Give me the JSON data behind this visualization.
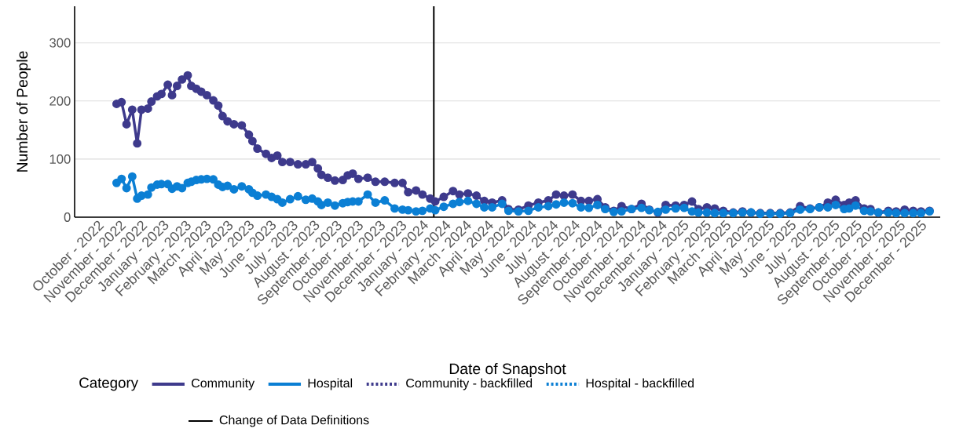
{
  "chart_data": {
    "type": "line",
    "xlabel": "Date of Snapshot",
    "ylabel": "Number of People",
    "legend_title": "Category",
    "xlim": [
      "2022-08-30",
      "2025-12-29"
    ],
    "ylim": [
      0,
      363
    ],
    "yticks": [
      0,
      100,
      200,
      300
    ],
    "xticks": [
      {
        "value": "2022-10-01",
        "label": "October - 2022"
      },
      {
        "value": "2022-11-01",
        "label": "November - 2022"
      },
      {
        "value": "2022-12-01",
        "label": "December - 2022"
      },
      {
        "value": "2023-01-01",
        "label": "January - 2023"
      },
      {
        "value": "2023-02-01",
        "label": "February - 2023"
      },
      {
        "value": "2023-03-01",
        "label": "March - 2023"
      },
      {
        "value": "2023-04-01",
        "label": "April - 2023"
      },
      {
        "value": "2023-05-01",
        "label": "May - 2023"
      },
      {
        "value": "2023-06-01",
        "label": "June - 2023"
      },
      {
        "value": "2023-07-01",
        "label": "July - 2023"
      },
      {
        "value": "2023-08-01",
        "label": "August - 2023"
      },
      {
        "value": "2023-09-01",
        "label": "September - 2023"
      },
      {
        "value": "2023-10-01",
        "label": "October - 2023"
      },
      {
        "value": "2023-11-01",
        "label": "November - 2023"
      },
      {
        "value": "2023-12-01",
        "label": "December - 2023"
      },
      {
        "value": "2024-01-01",
        "label": "January - 2024"
      },
      {
        "value": "2024-02-01",
        "label": "February - 2024"
      },
      {
        "value": "2024-03-01",
        "label": "March - 2024"
      },
      {
        "value": "2024-04-01",
        "label": "April - 2024"
      },
      {
        "value": "2024-05-01",
        "label": "May - 2024"
      },
      {
        "value": "2024-06-01",
        "label": "June - 2024"
      },
      {
        "value": "2024-07-01",
        "label": "July - 2024"
      },
      {
        "value": "2024-08-01",
        "label": "August - 2024"
      },
      {
        "value": "2024-09-01",
        "label": "September - 2024"
      },
      {
        "value": "2024-10-01",
        "label": "October - 2024"
      },
      {
        "value": "2024-11-01",
        "label": "November - 2024"
      },
      {
        "value": "2024-12-01",
        "label": "December - 2024"
      },
      {
        "value": "2025-01-01",
        "label": "January - 2025"
      },
      {
        "value": "2025-02-01",
        "label": "February - 2025"
      },
      {
        "value": "2025-03-01",
        "label": "March - 2025"
      },
      {
        "value": "2025-04-01",
        "label": "April - 2025"
      },
      {
        "value": "2025-05-01",
        "label": "May - 2025"
      },
      {
        "value": "2025-06-01",
        "label": "June - 2025"
      },
      {
        "value": "2025-07-01",
        "label": "July - 2025"
      },
      {
        "value": "2025-08-01",
        "label": "August - 2025"
      },
      {
        "value": "2025-09-01",
        "label": "September - 2025"
      },
      {
        "value": "2025-10-01",
        "label": "October - 2025"
      },
      {
        "value": "2025-11-01",
        "label": "November - 2025"
      },
      {
        "value": "2025-12-01",
        "label": "December - 2025"
      }
    ],
    "x": [
      "2022-10-28",
      "2022-11-04",
      "2022-11-11",
      "2022-11-19",
      "2022-11-26",
      "2022-12-02",
      "2022-12-11",
      "2022-12-16",
      "2022-12-24",
      "2022-12-30",
      "2023-01-08",
      "2023-01-14",
      "2023-01-21",
      "2023-01-28",
      "2023-02-05",
      "2023-02-10",
      "2023-02-17",
      "2023-02-24",
      "2023-03-04",
      "2023-03-13",
      "2023-03-20",
      "2023-03-26",
      "2023-04-02",
      "2023-04-11",
      "2023-04-22",
      "2023-05-02",
      "2023-05-07",
      "2023-05-14",
      "2023-05-26",
      "2023-06-03",
      "2023-06-11",
      "2023-06-18",
      "2023-06-29",
      "2023-07-10",
      "2023-07-21",
      "2023-07-30",
      "2023-08-07",
      "2023-08-12",
      "2023-08-21",
      "2023-08-31",
      "2023-09-11",
      "2023-09-18",
      "2023-09-25",
      "2023-10-03",
      "2023-10-16",
      "2023-10-27",
      "2023-11-09",
      "2023-11-23",
      "2023-12-04",
      "2023-12-12",
      "2023-12-23",
      "2024-01-01",
      "2024-01-12",
      "2024-01-19",
      "2024-01-31",
      "2024-02-13",
      "2024-02-22",
      "2024-03-05",
      "2024-03-17",
      "2024-03-28",
      "2024-04-08",
      "2024-04-22",
      "2024-05-01",
      "2024-05-15",
      "2024-05-29",
      "2024-06-12",
      "2024-06-26",
      "2024-07-07",
      "2024-07-18",
      "2024-07-30",
      "2024-08-11",
      "2024-08-22",
      "2024-09-03",
      "2024-09-14",
      "2024-09-26",
      "2024-10-07",
      "2024-10-21",
      "2024-11-04",
      "2024-11-15",
      "2024-11-27",
      "2024-12-08",
      "2024-12-22",
      "2025-01-03",
      "2025-01-14",
      "2025-01-23",
      "2025-02-04",
      "2025-02-15",
      "2025-02-27",
      "2025-03-13",
      "2025-03-26",
      "2025-04-07",
      "2025-04-20",
      "2025-05-04",
      "2025-05-18",
      "2025-06-01",
      "2025-06-15",
      "2025-06-29",
      "2025-07-12",
      "2025-07-24",
      "2025-08-04",
      "2025-08-16",
      "2025-08-23",
      "2025-09-01",
      "2025-09-13",
      "2025-09-22",
      "2025-10-03",
      "2025-10-17",
      "2025-10-28",
      "2025-11-09",
      "2025-11-21",
      "2025-12-02",
      "2025-12-14"
    ],
    "series": [
      {
        "name": "Community",
        "color": "#3e3a8c",
        "line_style": "solid",
        "values": [
          195,
          198,
          160,
          185,
          127,
          185,
          187,
          199,
          208,
          212,
          228,
          210,
          226,
          237,
          244,
          226,
          221,
          216,
          210,
          201,
          192,
          174,
          165,
          160,
          158,
          142,
          131,
          118,
          109,
          102,
          106,
          95,
          95,
          91,
          91,
          95,
          84,
          73,
          68,
          63,
          64,
          72,
          75,
          66,
          68,
          61,
          61,
          59,
          59,
          43,
          46,
          39,
          32,
          27,
          35,
          45,
          39,
          41,
          37,
          28,
          25,
          29,
          14,
          13,
          20,
          25,
          29,
          39,
          37,
          39,
          28,
          28,
          31,
          17,
          11,
          19,
          14,
          23,
          13,
          8,
          21,
          20,
          21,
          27,
          14,
          17,
          15,
          11,
          8,
          10,
          8,
          7,
          7,
          7,
          8,
          19,
          15,
          17,
          25,
          30,
          21,
          25,
          29,
          15,
          14,
          8,
          11,
          10,
          13,
          11,
          10,
          11
        ]
      },
      {
        "name": "Hospital",
        "color": "#0b7fd4",
        "line_style": "solid",
        "values": [
          59,
          66,
          50,
          70,
          32,
          37,
          39,
          51,
          56,
          57,
          57,
          49,
          53,
          50,
          59,
          61,
          64,
          65,
          66,
          65,
          56,
          52,
          54,
          48,
          53,
          48,
          42,
          37,
          39,
          35,
          31,
          25,
          31,
          36,
          30,
          32,
          27,
          21,
          25,
          20,
          24,
          26,
          27,
          27,
          39,
          25,
          29,
          15,
          13,
          12,
          10,
          11,
          15,
          12,
          18,
          23,
          26,
          28,
          23,
          17,
          17,
          23,
          11,
          10,
          11,
          17,
          19,
          22,
          25,
          24,
          17,
          16,
          21,
          14,
          9,
          10,
          14,
          16,
          12,
          9,
          13,
          15,
          16,
          10,
          8,
          8,
          7,
          7,
          7,
          8,
          8,
          6,
          6,
          6,
          7,
          13,
          14,
          17,
          17,
          21,
          14,
          15,
          20,
          11,
          10,
          8,
          8,
          7,
          7,
          7,
          7,
          10
        ]
      },
      {
        "name": "Community - backfilled",
        "color": "#3e3a8c",
        "line_style": "dotted",
        "values": [
          null,
          null,
          null,
          null,
          null,
          null,
          null,
          null,
          null,
          null,
          null,
          null,
          null,
          null,
          null,
          null,
          null,
          null,
          null,
          null,
          null,
          null,
          null,
          null,
          null,
          null,
          null,
          null,
          null,
          null,
          null,
          null,
          null,
          null,
          null,
          null,
          null,
          null,
          null,
          null,
          null,
          null,
          null,
          null,
          null,
          null,
          null,
          null,
          null,
          null,
          null,
          null,
          null,
          null,
          null,
          null,
          null,
          null,
          null,
          null,
          null,
          null,
          null,
          null,
          null,
          null,
          null,
          null,
          null,
          null,
          null,
          null,
          null,
          null,
          null,
          null,
          null,
          null,
          null,
          null,
          null,
          null,
          null,
          null,
          null,
          null,
          null,
          null,
          null,
          null,
          null,
          null,
          null,
          null,
          null,
          null,
          null,
          null,
          null,
          null,
          null,
          null,
          null,
          null,
          null,
          null,
          null,
          null,
          null,
          null,
          null,
          null
        ]
      },
      {
        "name": "Hospital - backfilled",
        "color": "#0b7fd4",
        "line_style": "dotted",
        "values": [
          null,
          null,
          null,
          null,
          null,
          null,
          null,
          null,
          null,
          null,
          null,
          null,
          null,
          null,
          null,
          null,
          null,
          null,
          null,
          null,
          null,
          null,
          null,
          null,
          null,
          null,
          null,
          null,
          null,
          null,
          null,
          null,
          null,
          null,
          null,
          null,
          null,
          null,
          null,
          null,
          null,
          null,
          null,
          null,
          null,
          null,
          null,
          null,
          null,
          null,
          null,
          null,
          null,
          null,
          null,
          null,
          null,
          null,
          null,
          null,
          null,
          null,
          null,
          null,
          null,
          null,
          null,
          null,
          null,
          null,
          null,
          null,
          null,
          null,
          null,
          null,
          null,
          null,
          null,
          null,
          null,
          null,
          null,
          null,
          null,
          null,
          null,
          null,
          null,
          null,
          null,
          null,
          null,
          null,
          null,
          null,
          null,
          null,
          null,
          null,
          null,
          null,
          null,
          null,
          null,
          null,
          null,
          null,
          null,
          null,
          null,
          null
        ]
      }
    ],
    "ref_lines": [
      {
        "axis": "x",
        "value": "2024-01-17",
        "label": "Change of Data Definitions",
        "color": "#000000",
        "line_style": "solid"
      }
    ],
    "grid": "y",
    "legend": "bottom",
    "marker": "circle"
  }
}
